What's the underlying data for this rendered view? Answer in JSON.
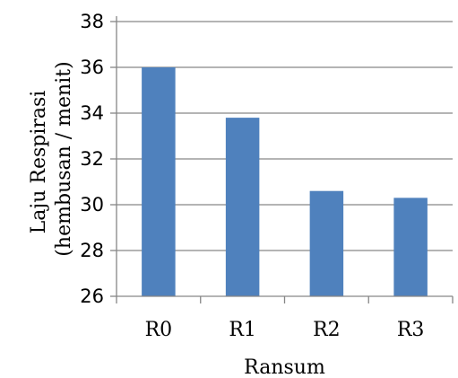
{
  "chart_data": {
    "type": "bar",
    "categories": [
      "R0",
      "R1",
      "R2",
      "R3"
    ],
    "values": [
      36.0,
      33.8,
      30.6,
      30.3
    ],
    "title": "",
    "xlabel": "Ransum",
    "ylabel_lines": [
      "Laju Respirasi",
      "(hembusan / menit)"
    ],
    "ylim": [
      26,
      38
    ],
    "yticks": [
      26,
      28,
      30,
      32,
      34,
      36,
      38
    ],
    "ytick_labels": [
      "26",
      "28",
      "30",
      "32",
      "34",
      "36",
      "38"
    ],
    "grid": true,
    "legend": "none",
    "bar_color": "#4f81bd",
    "grid_color": "#868686"
  }
}
